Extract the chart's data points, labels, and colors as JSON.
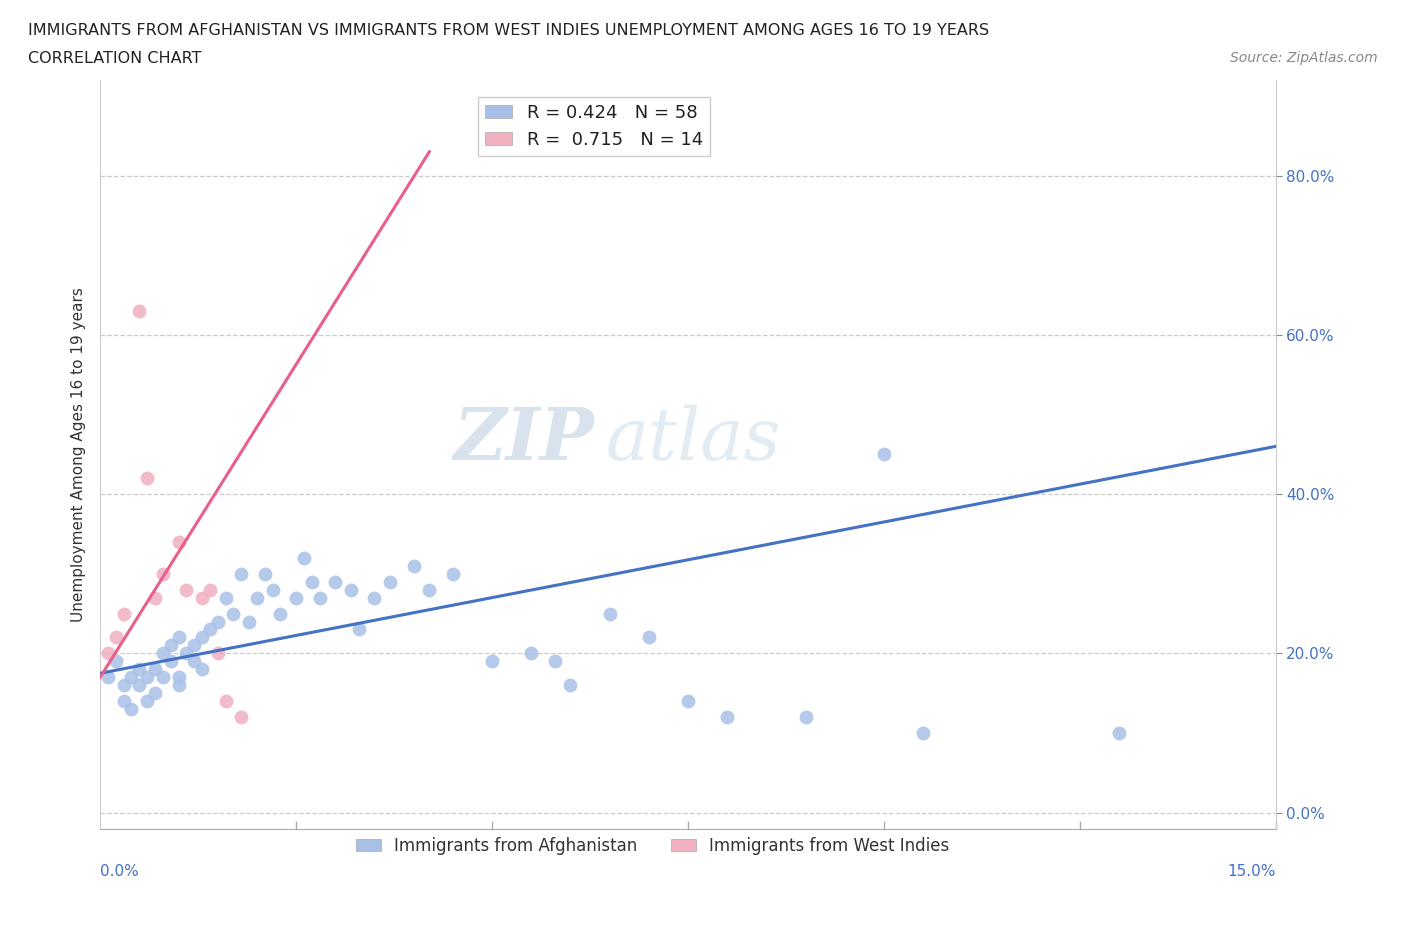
{
  "title_line1": "IMMIGRANTS FROM AFGHANISTAN VS IMMIGRANTS FROM WEST INDIES UNEMPLOYMENT AMONG AGES 16 TO 19 YEARS",
  "title_line2": "CORRELATION CHART",
  "source_text": "Source: ZipAtlas.com",
  "ylabel": "Unemployment Among Ages 16 to 19 years",
  "xlim": [
    0.0,
    0.15
  ],
  "ylim": [
    -0.02,
    0.92
  ],
  "xticks": [
    0.0,
    0.05,
    0.1,
    0.15
  ],
  "xtick_labels": [
    "0.0%",
    "",
    "",
    ""
  ],
  "xtick_minor": [
    0.025,
    0.075,
    0.125
  ],
  "yticks": [
    0.0,
    0.2,
    0.4,
    0.6,
    0.8
  ],
  "ytick_labels": [
    "0.0%",
    "20.0%",
    "40.0%",
    "60.0%",
    "80.0%"
  ],
  "x_bottom_labels": {
    "0.0": "0.0%",
    "0.15": "15.0%"
  },
  "blue_color": "#A8C0E8",
  "pink_color": "#F0B0C0",
  "blue_line_color": "#4472C4",
  "pink_line_color": "#E8608A",
  "R_blue": 0.424,
  "N_blue": 58,
  "R_pink": 0.715,
  "N_pink": 14,
  "legend_label_blue": "Immigrants from Afghanistan",
  "legend_label_pink": "Immigrants from West Indies",
  "watermark_zip": "ZIP",
  "watermark_atlas": "atlas",
  "blue_x": [
    0.001,
    0.002,
    0.003,
    0.003,
    0.004,
    0.004,
    0.005,
    0.005,
    0.006,
    0.006,
    0.007,
    0.007,
    0.008,
    0.008,
    0.009,
    0.009,
    0.01,
    0.01,
    0.01,
    0.011,
    0.012,
    0.012,
    0.013,
    0.013,
    0.014,
    0.015,
    0.016,
    0.017,
    0.018,
    0.019,
    0.02,
    0.021,
    0.022,
    0.023,
    0.025,
    0.026,
    0.027,
    0.028,
    0.03,
    0.032,
    0.033,
    0.035,
    0.037,
    0.04,
    0.042,
    0.045,
    0.05,
    0.055,
    0.058,
    0.06,
    0.065,
    0.07,
    0.075,
    0.08,
    0.09,
    0.1,
    0.105,
    0.13
  ],
  "blue_y": [
    0.17,
    0.19,
    0.16,
    0.14,
    0.17,
    0.13,
    0.16,
    0.18,
    0.17,
    0.14,
    0.18,
    0.15,
    0.17,
    0.2,
    0.19,
    0.21,
    0.22,
    0.17,
    0.16,
    0.2,
    0.21,
    0.19,
    0.22,
    0.18,
    0.23,
    0.24,
    0.27,
    0.25,
    0.3,
    0.24,
    0.27,
    0.3,
    0.28,
    0.25,
    0.27,
    0.32,
    0.29,
    0.27,
    0.29,
    0.28,
    0.23,
    0.27,
    0.29,
    0.31,
    0.28,
    0.3,
    0.19,
    0.2,
    0.19,
    0.16,
    0.25,
    0.22,
    0.14,
    0.12,
    0.12,
    0.45,
    0.1,
    0.1
  ],
  "pink_x": [
    0.001,
    0.002,
    0.003,
    0.005,
    0.006,
    0.007,
    0.008,
    0.01,
    0.011,
    0.013,
    0.014,
    0.015,
    0.016,
    0.018
  ],
  "pink_y": [
    0.2,
    0.22,
    0.25,
    0.63,
    0.42,
    0.27,
    0.3,
    0.34,
    0.28,
    0.27,
    0.28,
    0.2,
    0.14,
    0.12
  ],
  "blue_trend_x": [
    0.0,
    0.15
  ],
  "blue_trend_y": [
    0.175,
    0.46
  ],
  "pink_trend_x": [
    0.0,
    0.042
  ],
  "pink_trend_y": [
    0.17,
    0.83
  ]
}
